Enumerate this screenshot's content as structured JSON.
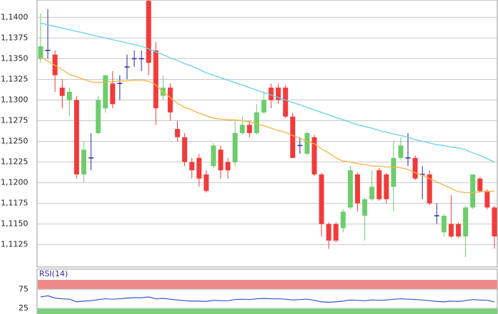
{
  "chart_data": {
    "type": "candlestick",
    "ylim": [
      1.1098,
      1.1421
    ],
    "yticks": [
      {
        "value": 1.14,
        "label": "1,1400"
      },
      {
        "value": 1.1375,
        "label": "1,1375"
      },
      {
        "value": 1.135,
        "label": "1,1350"
      },
      {
        "value": 1.1325,
        "label": "1,1325"
      },
      {
        "value": 1.13,
        "label": "1,1300"
      },
      {
        "value": 1.1275,
        "label": "1,1275"
      },
      {
        "value": 1.125,
        "label": "1,1250"
      },
      {
        "value": 1.1225,
        "label": "1,1225"
      },
      {
        "value": 1.12,
        "label": "1,1200"
      },
      {
        "value": 1.1175,
        "label": "1,1175"
      },
      {
        "value": 1.115,
        "label": "1,1150"
      },
      {
        "value": 1.1125,
        "label": "1,1125"
      }
    ],
    "grid": true,
    "up_color": "#6dcd6d",
    "down_color": "#f23a3a",
    "doji_color": "#2a2aa0",
    "open": [
      1.135,
      1.136,
      1.1355,
      1.1315,
      1.13,
      1.13,
      1.121,
      1.123,
      1.126,
      1.129,
      1.132,
      1.132,
      1.134,
      1.135,
      1.135,
      1.142,
      1.136,
      1.1305,
      1.1315,
      1.1265,
      1.1255,
      1.1225,
      1.123,
      1.121,
      1.122,
      1.124,
      1.1225,
      1.1225,
      1.126,
      1.127,
      1.126,
      1.1285,
      1.1315,
      1.1315,
      1.1315,
      1.128,
      1.1245,
      1.1235,
      1.1255,
      1.121,
      1.115,
      1.115,
      1.1145,
      1.117,
      1.121,
      1.116,
      1.118,
      1.1215,
      1.121,
      1.1195,
      1.123,
      1.123,
      1.123,
      1.121,
      1.121,
      1.116,
      1.114,
      1.115,
      1.115,
      1.1135,
      1.117,
      1.1205,
      1.119,
      1.117
    ],
    "high": [
      1.1405,
      1.141,
      1.136,
      1.1325,
      1.1315,
      1.1305,
      1.125,
      1.126,
      1.1305,
      1.133,
      1.1335,
      1.133,
      1.1355,
      1.136,
      1.136,
      1.1425,
      1.137,
      1.133,
      1.132,
      1.1275,
      1.126,
      1.123,
      1.1235,
      1.1215,
      1.1248,
      1.1245,
      1.123,
      1.1275,
      1.128,
      1.1275,
      1.1295,
      1.131,
      1.132,
      1.132,
      1.1318,
      1.1285,
      1.1255,
      1.1262,
      1.1258,
      1.1212,
      1.1152,
      1.1152,
      1.1168,
      1.122,
      1.1212,
      1.1182,
      1.1215,
      1.1218,
      1.1212,
      1.125,
      1.1255,
      1.126,
      1.1233,
      1.122,
      1.1215,
      1.1175,
      1.1162,
      1.1185,
      1.1152,
      1.1172,
      1.121,
      1.1207,
      1.1192,
      1.1172
    ],
    "low": [
      1.1345,
      1.135,
      1.131,
      1.129,
      1.128,
      1.1205,
      1.12,
      1.1215,
      1.1258,
      1.1285,
      1.129,
      1.13,
      1.1325,
      1.134,
      1.1335,
      1.133,
      1.127,
      1.13,
      1.1275,
      1.125,
      1.122,
      1.1205,
      1.1195,
      1.1188,
      1.1218,
      1.1205,
      1.1205,
      1.122,
      1.1258,
      1.1255,
      1.1258,
      1.1283,
      1.129,
      1.1295,
      1.1278,
      1.123,
      1.1235,
      1.1233,
      1.1208,
      1.1135,
      1.112,
      1.1128,
      1.114,
      1.1168,
      1.1165,
      1.113,
      1.1178,
      1.1178,
      1.1175,
      1.1165,
      1.1228,
      1.122,
      1.1203,
      1.118,
      1.1173,
      1.115,
      1.1135,
      1.1133,
      1.1133,
      1.111,
      1.1168,
      1.1188,
      1.1168,
      1.112
    ],
    "close": [
      1.1365,
      1.136,
      1.133,
      1.1305,
      1.131,
      1.121,
      1.124,
      1.123,
      1.13,
      1.133,
      1.1295,
      1.132,
      1.134,
      1.135,
      1.135,
      1.1345,
      1.129,
      1.1315,
      1.1285,
      1.1255,
      1.1225,
      1.1215,
      1.1205,
      1.119,
      1.1245,
      1.1215,
      1.1215,
      1.126,
      1.127,
      1.126,
      1.1285,
      1.13,
      1.13,
      1.13,
      1.128,
      1.123,
      1.1245,
      1.126,
      1.121,
      1.115,
      1.113,
      1.113,
      1.1165,
      1.1215,
      1.1175,
      1.118,
      1.1195,
      1.118,
      1.118,
      1.123,
      1.1245,
      1.123,
      1.1205,
      1.121,
      1.1175,
      1.116,
      1.116,
      1.1135,
      1.1135,
      1.117,
      1.121,
      1.119,
      1.117,
      1.1135
    ],
    "lines": [
      {
        "color": "#66d0ee",
        "values": [
          1.1393,
          1.1391,
          1.1389,
          1.1387,
          1.1385,
          1.1383,
          1.1381,
          1.1379,
          1.1377,
          1.1375,
          1.1373,
          1.1371,
          1.1369,
          1.1367,
          1.1365,
          1.1362,
          1.1358,
          1.1355,
          1.1351,
          1.1348,
          1.1344,
          1.1341,
          1.1337,
          1.1333,
          1.133,
          1.1327,
          1.1324,
          1.1321,
          1.1318,
          1.1315,
          1.1312,
          1.1309,
          1.1306,
          1.1303,
          1.13,
          1.1297,
          1.1294,
          1.1291,
          1.1288,
          1.1285,
          1.1282,
          1.1279,
          1.1276,
          1.1273,
          1.127,
          1.1268,
          1.1266,
          1.1263,
          1.1261,
          1.1259,
          1.1257,
          1.1255,
          1.1252,
          1.125,
          1.1248,
          1.1246,
          1.1245,
          1.1243,
          1.1242,
          1.124,
          1.1236,
          1.1233,
          1.1229,
          1.1225
        ]
      },
      {
        "color": "#f5b342",
        "values": [
          1.1352,
          1.1347,
          1.1342,
          1.1337,
          1.1331,
          1.1328,
          1.1325,
          1.1322,
          1.1321,
          1.1322,
          1.1322,
          1.1323,
          1.1323,
          1.1324,
          1.1324,
          1.1323,
          1.1318,
          1.131,
          1.1303,
          1.1296,
          1.1291,
          1.1288,
          1.1284,
          1.1281,
          1.1278,
          1.1277,
          1.1276,
          1.1276,
          1.1275,
          1.1274,
          1.1271,
          1.1269,
          1.1266,
          1.1263,
          1.1261,
          1.1257,
          1.1254,
          1.125,
          1.1247,
          1.1241,
          1.1236,
          1.123,
          1.1226,
          1.1225,
          1.1223,
          1.1222,
          1.122,
          1.122,
          1.1219,
          1.1219,
          1.1218,
          1.1216,
          1.1212,
          1.1209,
          1.1205,
          1.1201,
          1.1197,
          1.1193,
          1.1189,
          1.1188,
          1.1188,
          1.1189,
          1.1189,
          1.119
        ]
      }
    ],
    "rsi": {
      "title": "RSI(14)",
      "ylim": [
        10,
        100
      ],
      "yticks": [
        75,
        25
      ],
      "high_band_color": "#f08a8a",
      "low_band_color": "#7dcf7d",
      "color": "#3355cc",
      "values": [
        55,
        58,
        52,
        50,
        49,
        42,
        44,
        45,
        48,
        50,
        49,
        50,
        52,
        53,
        53,
        55,
        50,
        51,
        49,
        47,
        45,
        44,
        44,
        43,
        46,
        45,
        45,
        48,
        49,
        48,
        50,
        51,
        50,
        50,
        49,
        47,
        48,
        49,
        46,
        42,
        41,
        42,
        44,
        47,
        46,
        45,
        47,
        46,
        47,
        49,
        50,
        49,
        48,
        47,
        45,
        43,
        42,
        44,
        43,
        45,
        48,
        47,
        46,
        42
      ]
    }
  }
}
